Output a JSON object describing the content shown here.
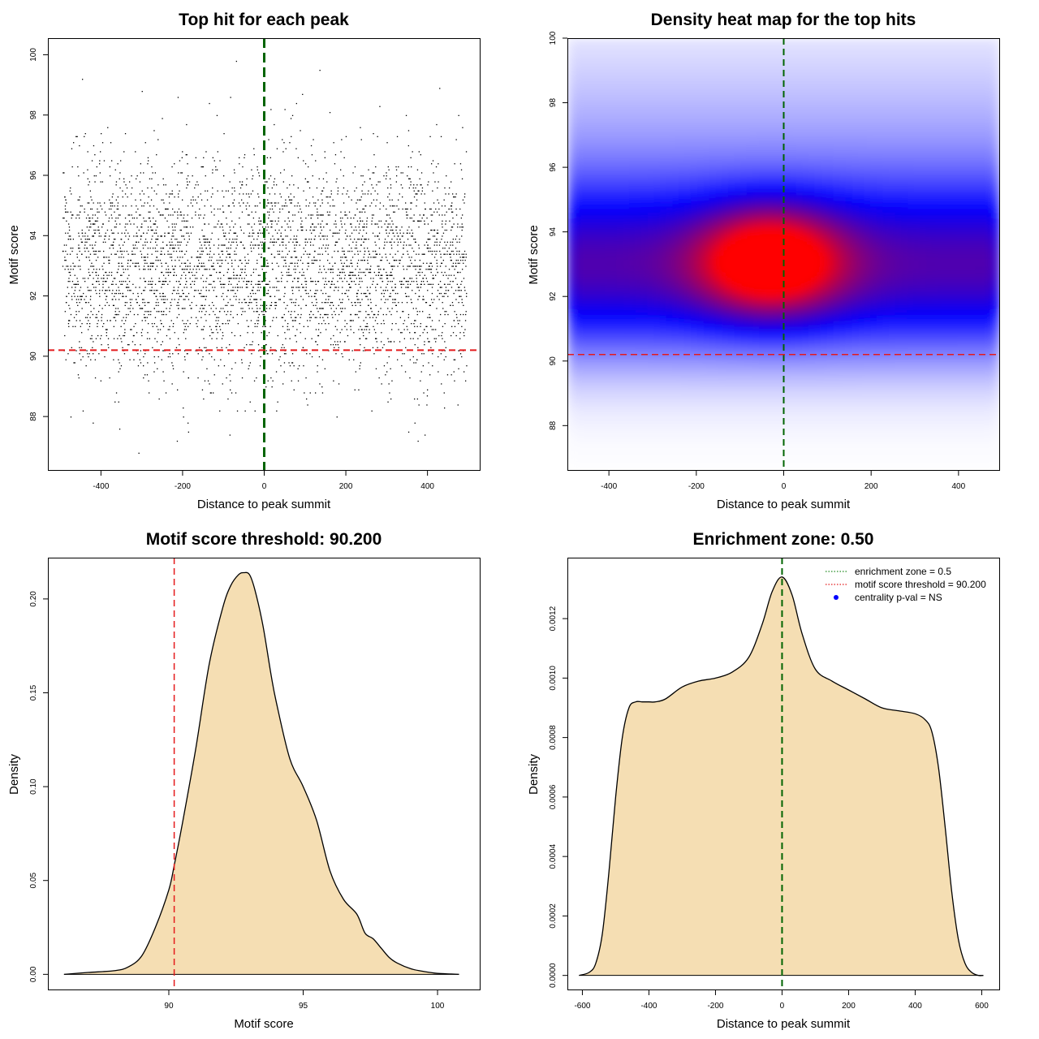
{
  "chart_data": [
    {
      "type": "scatter",
      "title": "Top hit for each peak",
      "xlabel": "Distance to peak summit",
      "ylabel": "Motif score",
      "xlim": [
        -530,
        530
      ],
      "ylim": [
        86.2,
        100.55
      ],
      "xticks": [
        -400,
        -200,
        0,
        200,
        400
      ],
      "yticks": [
        88,
        90,
        92,
        94,
        96,
        98,
        100
      ],
      "point_distribution": {
        "x_range": [
          -495,
          495
        ],
        "y_mean": 93.0,
        "y_sd": 1.8,
        "y_min": 86.5,
        "y_max": 100.0,
        "n_points": 4200,
        "color": "#000000"
      },
      "lines": [
        {
          "orientation": "vertical",
          "value": 0,
          "color": "#006400",
          "style": "dashed"
        },
        {
          "orientation": "horizontal",
          "value": 90.2,
          "color": "#e41a1c",
          "style": "dashed"
        }
      ]
    },
    {
      "type": "heatmap",
      "title": "Density heat map for the top hits",
      "xlabel": "Distance to peak summit",
      "ylabel": "Motif score",
      "xlim": [
        -495,
        495
      ],
      "ylim": [
        86.6,
        100.0
      ],
      "xticks": [
        -400,
        -200,
        0,
        200,
        400
      ],
      "yticks": [
        88,
        90,
        92,
        94,
        96,
        98,
        100
      ],
      "density_peak": {
        "x": -30,
        "y": 93.1
      },
      "colors": [
        "#ffffff",
        "#0000ff",
        "#ff0000"
      ],
      "lines": [
        {
          "orientation": "vertical",
          "value": 0,
          "color": "#006400",
          "style": "dashed"
        },
        {
          "orientation": "horizontal",
          "value": 90.2,
          "color": "#e41a1c",
          "style": "dashed"
        }
      ]
    },
    {
      "type": "area",
      "title": "Motif score threshold: 90.200",
      "xlabel": "Motif score",
      "ylabel": "Density",
      "xlim": [
        85.5,
        101.6
      ],
      "ylim": [
        -0.0085,
        0.222
      ],
      "xticks": [
        90,
        95,
        100
      ],
      "yticks": [
        0.0,
        0.05,
        0.1,
        0.15,
        0.2
      ],
      "ytick_labels": [
        "0.00",
        "0.05",
        "0.10",
        "0.15",
        "0.20"
      ],
      "fill": "#f5deb3",
      "x": [
        86.1,
        87.0,
        88.0,
        88.5,
        89.0,
        89.5,
        90.0,
        90.2,
        90.5,
        91.0,
        91.5,
        92.0,
        92.3,
        92.6,
        92.8,
        93.0,
        93.2,
        93.5,
        93.8,
        94.0,
        94.5,
        95.0,
        95.5,
        96.0,
        96.5,
        97.0,
        97.3,
        97.6,
        97.9,
        98.2,
        98.5,
        99.0,
        99.5,
        100.0,
        100.5,
        100.8
      ],
      "values": [
        0.0,
        0.001,
        0.002,
        0.004,
        0.01,
        0.025,
        0.045,
        0.058,
        0.08,
        0.12,
        0.165,
        0.195,
        0.207,
        0.213,
        0.214,
        0.213,
        0.205,
        0.186,
        0.16,
        0.145,
        0.115,
        0.1,
        0.082,
        0.055,
        0.04,
        0.032,
        0.022,
        0.019,
        0.014,
        0.009,
        0.006,
        0.003,
        0.0015,
        0.0005,
        0.0002,
        0.0
      ],
      "lines": [
        {
          "orientation": "vertical",
          "value": 90.2,
          "color": "#e41a1c",
          "style": "dashed"
        }
      ]
    },
    {
      "type": "area",
      "title": "Enrichment zone: 0.50",
      "xlabel": "Distance to peak summit",
      "ylabel": "Density",
      "xlim": [
        -645,
        655
      ],
      "ylim": [
        -5e-05,
        0.001405
      ],
      "xticks": [
        -600,
        -400,
        -200,
        0,
        200,
        400,
        600
      ],
      "yticks": [
        0.0,
        0.0002,
        0.0004,
        0.0006,
        0.0008,
        0.001,
        0.0012
      ],
      "ytick_labels": [
        "0.0000",
        "0.0002",
        "0.0004",
        "0.0006",
        "0.0008",
        "0.0010",
        "0.0012"
      ],
      "fill": "#f5deb3",
      "x": [
        -610,
        -580,
        -560,
        -540,
        -520,
        -500,
        -480,
        -460,
        -440,
        -420,
        -400,
        -380,
        -350,
        -300,
        -250,
        -200,
        -150,
        -100,
        -60,
        -30,
        0,
        30,
        60,
        100,
        150,
        200,
        250,
        300,
        350,
        400,
        430,
        450,
        470,
        490,
        510,
        530,
        550,
        570,
        590,
        605
      ],
      "values": [
        0.0,
        1e-05,
        4e-05,
        0.00014,
        0.00035,
        0.0006,
        0.0008,
        0.0009,
        0.00092,
        0.00092,
        0.00092,
        0.00092,
        0.00093,
        0.00097,
        0.00099,
        0.001,
        0.00102,
        0.00107,
        0.00118,
        0.00129,
        0.00134,
        0.00128,
        0.00115,
        0.00103,
        0.00099,
        0.00096,
        0.00093,
        0.0009,
        0.00089,
        0.00088,
        0.00086,
        0.00082,
        0.0007,
        0.0005,
        0.00028,
        0.00012,
        4e-05,
        1e-05,
        0.0,
        0.0
      ],
      "lines": [
        {
          "orientation": "vertical",
          "value": 0,
          "color": "#006400",
          "style": "dashed"
        }
      ],
      "legend": {
        "position": "top-right",
        "entries": [
          {
            "label": "enrichment zone = 0.5",
            "color": "#228b22",
            "marker": "dotted-line"
          },
          {
            "label": "motif score threshold = 90.200",
            "color": "#e41a1c",
            "marker": "dotted-line"
          },
          {
            "label": "centrality p-val = NS",
            "color": "#0000ff",
            "marker": "dot"
          }
        ]
      }
    }
  ]
}
